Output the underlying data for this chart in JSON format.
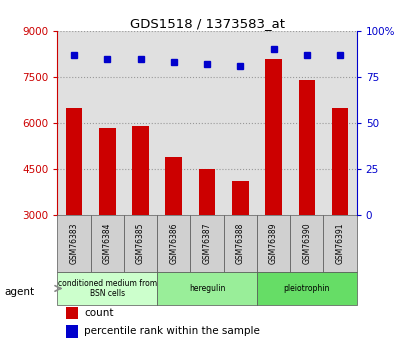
{
  "title": "GDS1518 / 1373583_at",
  "categories": [
    "GSM76383",
    "GSM76384",
    "GSM76385",
    "GSM76386",
    "GSM76387",
    "GSM76388",
    "GSM76389",
    "GSM76390",
    "GSM76391"
  ],
  "counts": [
    6500,
    5850,
    5900,
    4900,
    4500,
    4100,
    8100,
    7400,
    6500
  ],
  "percentiles": [
    87,
    85,
    85,
    83,
    82,
    81,
    90,
    87,
    87
  ],
  "ylim_left": [
    3000,
    9000
  ],
  "ylim_right": [
    0,
    100
  ],
  "yticks_left": [
    3000,
    4500,
    6000,
    7500,
    9000
  ],
  "yticks_right": [
    0,
    25,
    50,
    75,
    100
  ],
  "bar_color": "#cc0000",
  "dot_color": "#0000cc",
  "agent_groups": [
    {
      "label": "conditioned medium from\nBSN cells",
      "count": 3,
      "color": "#ccffcc"
    },
    {
      "label": "heregulin",
      "count": 3,
      "color": "#99ee99"
    },
    {
      "label": "pleiotrophin",
      "count": 3,
      "color": "#66dd66"
    }
  ],
  "legend_count_label": "count",
  "legend_pct_label": "percentile rank within the sample",
  "agent_label": "agent",
  "background_color": "#ffffff",
  "plot_bg_color": "#e0e0e0",
  "grid_color": "#aaaaaa",
  "cell_bg_color": "#d0d0d0"
}
